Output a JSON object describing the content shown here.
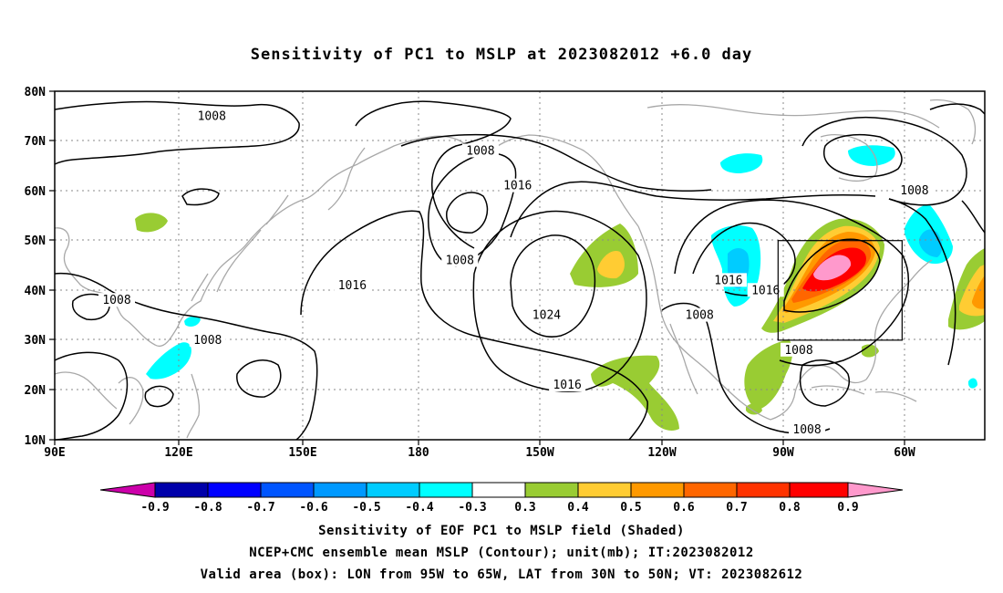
{
  "title": "Sensitivity of PC1 to MSLP at 2023082012 +6.0 day",
  "map": {
    "lat_ticks": [
      "80N",
      "70N",
      "60N",
      "50N",
      "40N",
      "30N",
      "20N",
      "10N"
    ],
    "lon_ticks": [
      "90E",
      "120E",
      "150E",
      "180",
      "150W",
      "120W",
      "90W",
      "60W"
    ],
    "lon_range": [
      "90E",
      "45W"
    ],
    "lat_range": [
      "10N",
      "80N"
    ],
    "contour_labels": [
      {
        "text": "1008",
        "lon": 128,
        "lat": 75
      },
      {
        "text": "1008",
        "lon": -167,
        "lat": 68
      },
      {
        "text": "1008",
        "lon": -172,
        "lat": 46
      },
      {
        "text": "1016",
        "lon": -158,
        "lat": 61
      },
      {
        "text": "1016",
        "lon": 162,
        "lat": 41
      },
      {
        "text": "1008",
        "lon": 105,
        "lat": 38
      },
      {
        "text": "1008",
        "lon": 127,
        "lat": 30
      },
      {
        "text": "1024",
        "lon": -151,
        "lat": 35
      },
      {
        "text": "1016",
        "lon": -146,
        "lat": 21
      },
      {
        "text": "1008",
        "lon": -114,
        "lat": 35
      },
      {
        "text": "1016",
        "lon": -107,
        "lat": 42
      },
      {
        "text": "1016",
        "lon": -98,
        "lat": 40
      },
      {
        "text": "1008",
        "lon": -90,
        "lat": 28
      },
      {
        "text": "1008",
        "lon": -62,
        "lat": 60
      },
      {
        "text": "1008",
        "lon": -88,
        "lat": 12
      }
    ],
    "valid_box": {
      "lon_min": -95,
      "lon_max": -65,
      "lat_min": 30,
      "lat_max": 50
    },
    "colors": {
      "neg9": "#cc00aa",
      "neg8": "#0000aa",
      "neg7": "#0000ff",
      "neg6": "#0055ff",
      "neg5": "#0099ff",
      "neg4": "#00ccff",
      "neg3": "#00ffff",
      "zero": "#ffffff",
      "pos3": "#99cc33",
      "pos4": "#ffcc33",
      "pos5": "#ff9900",
      "pos6": "#ff6600",
      "pos7": "#ff3300",
      "pos8": "#ff0000",
      "pos9": "#ff99cc",
      "coast": "#a8a8a8"
    }
  },
  "colorbar": {
    "labels": [
      "-0.9",
      "-0.8",
      "-0.7",
      "-0.6",
      "-0.5",
      "-0.4",
      "-0.3",
      "0.3",
      "0.4",
      "0.5",
      "0.6",
      "0.7",
      "0.8",
      "0.9"
    ]
  },
  "captions": {
    "line1": "Sensitivity of EOF PC1 to MSLP field (Shaded)",
    "line2": "NCEP+CMC ensemble mean MSLP (Contour); unit(mb); IT:2023082012",
    "line3": "Valid area (box): LON from 95W to 65W, LAT from 30N to 50N; VT: 2023082612"
  }
}
